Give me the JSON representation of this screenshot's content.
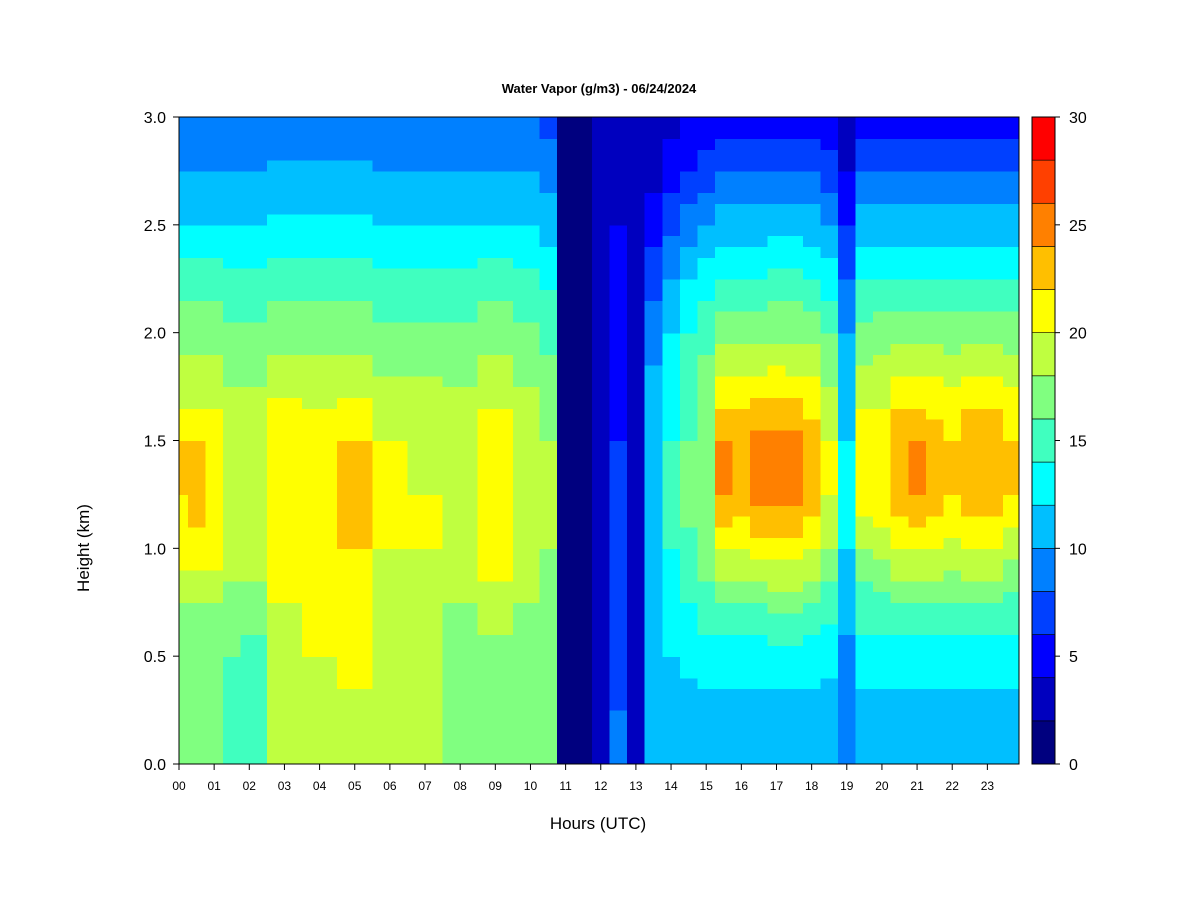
{
  "chart_data": {
    "type": "heatmap",
    "title": "Water Vapor (g/m3) - 06/24/2024",
    "xlabel": "Hours (UTC)",
    "ylabel": "Height (km)",
    "xlim": [
      0,
      23.9
    ],
    "ylim": [
      0.0,
      3.0
    ],
    "x_ticks": [
      0,
      1,
      2,
      3,
      4,
      5,
      6,
      7,
      8,
      9,
      10,
      11,
      12,
      13,
      14,
      15,
      16,
      17,
      18,
      19,
      20,
      21,
      22,
      23
    ],
    "x_tick_labels": [
      "00",
      "01",
      "02",
      "03",
      "04",
      "05",
      "06",
      "07",
      "08",
      "09",
      "10",
      "11",
      "12",
      "13",
      "14",
      "15",
      "16",
      "17",
      "18",
      "19",
      "20",
      "21",
      "22",
      "23"
    ],
    "y_ticks": [
      0.0,
      0.5,
      1.0,
      1.5,
      2.0,
      2.5,
      3.0
    ],
    "y_tick_labels": [
      "0.0",
      "0.5",
      "1.0",
      "1.5",
      "2.0",
      "2.5",
      "3.0"
    ],
    "colorbar": {
      "label": "Water Vapor (g/m3)",
      "min": 0,
      "max": 30,
      "levels": [
        0,
        2,
        4,
        6,
        8,
        10,
        12,
        14,
        16,
        18,
        20,
        22,
        24,
        26,
        28,
        30
      ],
      "tick_values": [
        0,
        5,
        10,
        15,
        20,
        25,
        30
      ],
      "tick_labels": [
        "0",
        "5",
        "10",
        "15",
        "20",
        "25",
        "30"
      ],
      "colors": [
        "#00007F",
        "#0000BF",
        "#0000FF",
        "#0040FF",
        "#0080FF",
        "#00BFFF",
        "#00FFFF",
        "#40FFBF",
        "#80FF80",
        "#BFFF40",
        "#FFFF00",
        "#FFBF00",
        "#FF8000",
        "#FF4000",
        "#FF0000",
        "#BF0000"
      ]
    },
    "heights_km": [
      0.0,
      0.25,
      0.5,
      0.75,
      1.0,
      1.25,
      1.5,
      1.75,
      2.0,
      2.25,
      2.5,
      2.75,
      3.0
    ],
    "hours_utc": [
      0.0,
      0.5,
      1.0,
      1.5,
      2.0,
      3.0,
      4.0,
      5.0,
      6.0,
      7.0,
      8.0,
      9.0,
      10.0,
      10.5,
      11.0,
      11.5,
      12.0,
      12.5,
      13.0,
      13.5,
      14.0,
      14.5,
      15.0,
      15.5,
      16.0,
      16.5,
      17.0,
      17.5,
      18.0,
      18.5,
      19.0,
      19.5,
      20.0,
      20.5,
      21.0,
      21.5,
      22.0,
      22.5,
      23.0,
      23.9
    ],
    "profiles": [
      {
        "hour": 0.0,
        "values": [
          16.5,
          16.5,
          17,
          18,
          21,
          22,
          22,
          19,
          17,
          15,
          12,
          10,
          8
        ]
      },
      {
        "hour": 0.5,
        "values": [
          16.5,
          16.5,
          17.5,
          18,
          21.5,
          22.5,
          22,
          19,
          17,
          15,
          12,
          10,
          8
        ]
      },
      {
        "hour": 1.0,
        "values": [
          16.5,
          16.5,
          17,
          18,
          21,
          22,
          21.5,
          19,
          17,
          15,
          12,
          10,
          8
        ]
      },
      {
        "hour": 1.5,
        "values": [
          16,
          15,
          16,
          17,
          19,
          20,
          19.5,
          18,
          16.5,
          14.5,
          12,
          10,
          8
        ]
      },
      {
        "hour": 2.0,
        "values": [
          16,
          15,
          15.5,
          17,
          19,
          20,
          19,
          18,
          16.5,
          14.5,
          12,
          10,
          8
        ]
      },
      {
        "hour": 3.0,
        "values": [
          18.5,
          18.5,
          19,
          20,
          21.5,
          22,
          21.5,
          19.5,
          17,
          15,
          12.5,
          10.5,
          8
        ]
      },
      {
        "hour": 4.0,
        "values": [
          19,
          19,
          20,
          20.5,
          21,
          21.5,
          21,
          19.5,
          17,
          15,
          12.5,
          10.5,
          8
        ]
      },
      {
        "hour": 5.0,
        "values": [
          19,
          19.5,
          20.5,
          21,
          22,
          22.5,
          22,
          19.5,
          17,
          15,
          12.5,
          10.5,
          8
        ]
      },
      {
        "hour": 6.0,
        "values": [
          19,
          19,
          19,
          19.5,
          20,
          20.5,
          20,
          18.5,
          16.5,
          14.5,
          12,
          10,
          8
        ]
      },
      {
        "hour": 7.0,
        "values": [
          19,
          18.5,
          18.5,
          19,
          20,
          20,
          19.5,
          18.5,
          16.5,
          14.5,
          12,
          10,
          8
        ]
      },
      {
        "hour": 8.0,
        "values": [
          17,
          17,
          17.5,
          18,
          19,
          19,
          19,
          18,
          16.5,
          14.5,
          12,
          10,
          8
        ]
      },
      {
        "hour": 9.0,
        "values": [
          17,
          17,
          17.5,
          19,
          21,
          21.5,
          21,
          19,
          17,
          15,
          12,
          10,
          8
        ]
      },
      {
        "hour": 10.0,
        "values": [
          17,
          17,
          17.5,
          18,
          19,
          19.5,
          19,
          18,
          16.5,
          14.5,
          12,
          10,
          8
        ]
      },
      {
        "hour": 10.5,
        "values": [
          16.5,
          16.5,
          17,
          17.5,
          18,
          18.5,
          18,
          17,
          15.5,
          13.5,
          11,
          9,
          7.5
        ]
      },
      {
        "hour": 11.0,
        "values": [
          1,
          1,
          1,
          1,
          1,
          1,
          1,
          1,
          1,
          1,
          1,
          1,
          1
        ]
      },
      {
        "hour": 11.5,
        "values": [
          1,
          1,
          1,
          1,
          1,
          1,
          1,
          1,
          1,
          1,
          1,
          1,
          1
        ]
      },
      {
        "hour": 12.0,
        "values": [
          3,
          3,
          3,
          3,
          3,
          3,
          3,
          3,
          3,
          3,
          3,
          2,
          2
        ]
      },
      {
        "hour": 12.5,
        "values": [
          9,
          8,
          7,
          6,
          6,
          6,
          6,
          5,
          5,
          5,
          4,
          3,
          3
        ]
      },
      {
        "hour": 13.0,
        "values": [
          2,
          2,
          2,
          2,
          2,
          2,
          2,
          2,
          2,
          2,
          2,
          2,
          2
        ]
      },
      {
        "hour": 13.5,
        "values": [
          10,
          10,
          10.5,
          11,
          11,
          11,
          11,
          10.5,
          9,
          7,
          5,
          3,
          3
        ]
      },
      {
        "hour": 14.0,
        "values": [
          11,
          11,
          12,
          13,
          14,
          14.5,
          14,
          13.5,
          12,
          10,
          7.5,
          5,
          3
        ]
      },
      {
        "hour": 14.5,
        "values": [
          11,
          11,
          12.5,
          14,
          15.5,
          16.5,
          16,
          15.5,
          14,
          12,
          9,
          6,
          4
        ]
      },
      {
        "hour": 15.0,
        "values": [
          11,
          11,
          13,
          15,
          17,
          18,
          17.5,
          17,
          15.5,
          13,
          10,
          7,
          4
        ]
      },
      {
        "hour": 15.5,
        "values": [
          11,
          11,
          13,
          16,
          20,
          24,
          24,
          21,
          17,
          14,
          11,
          8,
          5
        ]
      },
      {
        "hour": 16.0,
        "values": [
          11,
          11,
          13,
          16,
          20,
          23,
          23,
          21,
          17,
          14,
          11,
          8,
          5
        ]
      },
      {
        "hour": 16.5,
        "values": [
          11,
          11,
          13,
          16,
          21,
          24.5,
          24.5,
          21,
          17,
          14,
          11,
          8,
          5
        ]
      },
      {
        "hour": 17.0,
        "values": [
          11,
          11,
          13,
          17,
          21,
          25,
          25,
          21.5,
          17.5,
          14.5,
          11,
          8,
          5
        ]
      },
      {
        "hour": 17.5,
        "values": [
          11,
          11,
          13,
          17,
          21,
          25,
          25,
          21,
          17.5,
          14.5,
          11,
          8,
          5
        ]
      },
      {
        "hour": 18.0,
        "values": [
          11,
          11,
          13,
          16,
          20,
          23,
          23,
          20.5,
          17,
          14,
          11,
          8,
          5
        ]
      },
      {
        "hour": 18.5,
        "values": [
          11,
          11,
          12.5,
          15,
          18,
          20,
          20,
          18,
          16,
          13,
          10,
          7,
          4.5
        ]
      },
      {
        "hour": 19.0,
        "values": [
          8,
          8,
          9,
          11,
          12,
          12.5,
          12,
          11,
          10,
          8,
          6,
          4,
          3
        ]
      },
      {
        "hour": 19.5,
        "values": [
          11,
          11,
          13,
          15,
          18,
          21,
          21,
          19,
          16.5,
          14,
          11,
          8,
          5
        ]
      },
      {
        "hour": 20.0,
        "values": [
          11,
          11,
          13,
          15.5,
          19,
          21,
          21,
          19,
          17,
          14,
          11,
          8,
          5
        ]
      },
      {
        "hour": 20.5,
        "values": [
          11,
          11,
          13,
          16,
          20,
          23,
          23,
          21,
          17,
          14,
          11,
          8,
          5
        ]
      },
      {
        "hour": 21.0,
        "values": [
          11,
          11,
          13,
          16,
          20,
          24,
          24,
          21,
          17,
          14,
          11,
          8,
          5
        ]
      },
      {
        "hour": 21.5,
        "values": [
          11,
          11,
          13,
          16,
          20,
          23,
          23,
          20.5,
          17,
          14,
          11,
          8,
          5
        ]
      },
      {
        "hour": 22.0,
        "values": [
          11,
          11,
          13,
          16,
          19.5,
          22,
          22,
          20,
          17,
          14,
          11,
          8,
          5
        ]
      },
      {
        "hour": 22.5,
        "values": [
          11,
          11,
          13,
          16,
          20,
          23,
          23,
          21,
          17,
          14,
          11,
          8,
          5
        ]
      },
      {
        "hour": 23.0,
        "values": [
          11,
          11,
          13,
          16,
          20,
          23,
          23,
          21,
          17,
          14,
          11,
          8,
          5
        ]
      },
      {
        "hour": 23.9,
        "values": [
          11,
          11,
          13,
          15.5,
          19,
          22,
          22,
          20,
          17,
          14,
          11,
          8,
          5
        ]
      }
    ]
  }
}
